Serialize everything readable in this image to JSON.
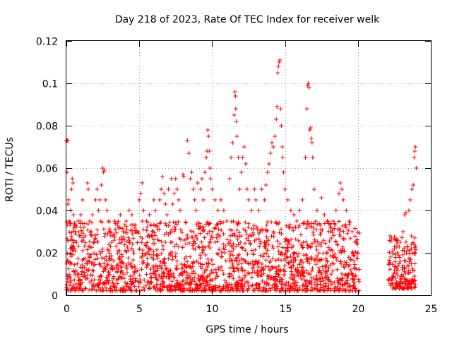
{
  "chart_data": {
    "type": "scatter",
    "title": "Day 218 of 2023, Rate Of TEC Index for receiver welk",
    "xlabel": "GPS time / hours",
    "ylabel": "ROTI / TECUs",
    "xlim": [
      0,
      25
    ],
    "ylim": [
      0,
      0.12
    ],
    "xticks": [
      0,
      5,
      10,
      15,
      20,
      25
    ],
    "yticks": [
      0,
      0.02,
      0.04,
      0.06,
      0.08,
      0.1,
      0.12
    ],
    "xtick_labels": [
      "0",
      "5",
      "10",
      "15",
      "20",
      "25"
    ],
    "ytick_labels": [
      "0",
      "0.02",
      "0.04",
      "0.06",
      "0.08",
      "0.1",
      "0.12"
    ],
    "grid": true,
    "marker": "plus",
    "color": "#ff0000",
    "series": [
      {
        "name": "",
        "points": [
          [
            0.0,
            0.073
          ],
          [
            0.05,
            0.073
          ],
          [
            0.1,
            0.073
          ],
          [
            0.05,
            0.058
          ],
          [
            0.1,
            0.043
          ],
          [
            0.15,
            0.045
          ],
          [
            0.2,
            0.035
          ],
          [
            0.25,
            0.033
          ],
          [
            0.3,
            0.04
          ],
          [
            0.4,
            0.055
          ],
          [
            0.45,
            0.053
          ],
          [
            0.35,
            0.05
          ],
          [
            0.5,
            0.038
          ],
          [
            0.55,
            0.034
          ],
          [
            0.6,
            0.03
          ],
          [
            0.7,
            0.025
          ],
          [
            0.8,
            0.035
          ],
          [
            0.9,
            0.028
          ],
          [
            1.0,
            0.038
          ],
          [
            1.1,
            0.045
          ],
          [
            1.2,
            0.032
          ],
          [
            1.3,
            0.028
          ],
          [
            1.5,
            0.05
          ],
          [
            1.45,
            0.053
          ],
          [
            1.6,
            0.035
          ],
          [
            1.7,
            0.03
          ],
          [
            1.8,
            0.038
          ],
          [
            1.9,
            0.025
          ],
          [
            2.0,
            0.045
          ],
          [
            2.1,
            0.05
          ],
          [
            2.2,
            0.04
          ],
          [
            2.3,
            0.045
          ],
          [
            2.4,
            0.052
          ],
          [
            2.5,
            0.06
          ],
          [
            2.55,
            0.058
          ],
          [
            2.6,
            0.059
          ],
          [
            2.7,
            0.045
          ],
          [
            2.8,
            0.04
          ],
          [
            2.9,
            0.035
          ],
          [
            3.0,
            0.03
          ],
          [
            3.1,
            0.025
          ],
          [
            3.2,
            0.028
          ],
          [
            3.3,
            0.035
          ],
          [
            3.5,
            0.033
          ],
          [
            3.7,
            0.038
          ],
          [
            3.9,
            0.03
          ],
          [
            4.1,
            0.035
          ],
          [
            4.3,
            0.04
          ],
          [
            4.5,
            0.038
          ],
          [
            4.7,
            0.033
          ],
          [
            4.9,
            0.03
          ],
          [
            5.0,
            0.045
          ],
          [
            5.1,
            0.048
          ],
          [
            5.2,
            0.053
          ],
          [
            5.3,
            0.04
          ],
          [
            5.5,
            0.035
          ],
          [
            5.7,
            0.038
          ],
          [
            5.9,
            0.03
          ],
          [
            6.0,
            0.045
          ],
          [
            6.1,
            0.04
          ],
          [
            6.2,
            0.033
          ],
          [
            6.4,
            0.045
          ],
          [
            6.5,
            0.05
          ],
          [
            6.6,
            0.056
          ],
          [
            6.7,
            0.048
          ],
          [
            6.8,
            0.043
          ],
          [
            6.9,
            0.038
          ],
          [
            7.0,
            0.05
          ],
          [
            7.2,
            0.055
          ],
          [
            7.3,
            0.043
          ],
          [
            7.4,
            0.048
          ],
          [
            7.5,
            0.055
          ],
          [
            7.6,
            0.05
          ],
          [
            7.7,
            0.045
          ],
          [
            7.8,
            0.04
          ],
          [
            8.0,
            0.057
          ],
          [
            8.05,
            0.056
          ],
          [
            8.3,
            0.073
          ],
          [
            8.4,
            0.067
          ],
          [
            8.5,
            0.055
          ],
          [
            8.6,
            0.058
          ],
          [
            8.7,
            0.05
          ],
          [
            8.8,
            0.045
          ],
          [
            8.9,
            0.04
          ],
          [
            9.0,
            0.053
          ],
          [
            9.2,
            0.05
          ],
          [
            9.3,
            0.055
          ],
          [
            9.4,
            0.045
          ],
          [
            9.5,
            0.058
          ],
          [
            9.6,
            0.065
          ],
          [
            9.65,
            0.068
          ],
          [
            9.7,
            0.078
          ],
          [
            9.75,
            0.075
          ],
          [
            9.8,
            0.068
          ],
          [
            9.85,
            0.06
          ],
          [
            9.9,
            0.055
          ],
          [
            10.0,
            0.05
          ],
          [
            10.2,
            0.045
          ],
          [
            10.4,
            0.04
          ],
          [
            10.6,
            0.045
          ],
          [
            10.8,
            0.04
          ],
          [
            11.0,
            0.035
          ],
          [
            11.2,
            0.055
          ],
          [
            11.3,
            0.065
          ],
          [
            11.4,
            0.072
          ],
          [
            11.5,
            0.085
          ],
          [
            11.55,
            0.096
          ],
          [
            11.6,
            0.094
          ],
          [
            11.62,
            0.088
          ],
          [
            11.65,
            0.082
          ],
          [
            11.7,
            0.075
          ],
          [
            11.8,
            0.065
          ],
          [
            11.9,
            0.05
          ],
          [
            12.0,
            0.058
          ],
          [
            12.1,
            0.065
          ],
          [
            12.2,
            0.07
          ],
          [
            12.3,
            0.062
          ],
          [
            12.4,
            0.05
          ],
          [
            12.5,
            0.045
          ],
          [
            12.7,
            0.04
          ],
          [
            12.9,
            0.05
          ],
          [
            13.0,
            0.045
          ],
          [
            13.2,
            0.04
          ],
          [
            13.4,
            0.05
          ],
          [
            13.6,
            0.045
          ],
          [
            13.7,
            0.052
          ],
          [
            13.8,
            0.058
          ],
          [
            13.9,
            0.062
          ],
          [
            14.0,
            0.067
          ],
          [
            14.1,
            0.072
          ],
          [
            14.2,
            0.07
          ],
          [
            14.3,
            0.075
          ],
          [
            14.4,
            0.083
          ],
          [
            14.45,
            0.089
          ],
          [
            14.5,
            0.105
          ],
          [
            14.55,
            0.108
          ],
          [
            14.6,
            0.11
          ],
          [
            14.65,
            0.111
          ],
          [
            14.7,
            0.088
          ],
          [
            14.75,
            0.08
          ],
          [
            14.8,
            0.07
          ],
          [
            14.85,
            0.065
          ],
          [
            14.9,
            0.058
          ],
          [
            15.0,
            0.05
          ],
          [
            15.2,
            0.045
          ],
          [
            15.4,
            0.04
          ],
          [
            15.6,
            0.038
          ],
          [
            15.8,
            0.035
          ],
          [
            16.0,
            0.04
          ],
          [
            16.2,
            0.045
          ],
          [
            16.4,
            0.065
          ],
          [
            16.5,
            0.088
          ],
          [
            16.55,
            0.099
          ],
          [
            16.6,
            0.1
          ],
          [
            16.65,
            0.098
          ],
          [
            16.7,
            0.078
          ],
          [
            16.75,
            0.079
          ],
          [
            16.8,
            0.074
          ],
          [
            16.85,
            0.072
          ],
          [
            16.9,
            0.065
          ],
          [
            17.0,
            0.05
          ],
          [
            17.2,
            0.04
          ],
          [
            17.5,
            0.046
          ],
          [
            17.7,
            0.038
          ],
          [
            17.9,
            0.035
          ],
          [
            18.1,
            0.03
          ],
          [
            18.3,
            0.035
          ],
          [
            18.5,
            0.04
          ],
          [
            18.7,
            0.048
          ],
          [
            18.8,
            0.053
          ],
          [
            18.9,
            0.05
          ],
          [
            19.0,
            0.045
          ],
          [
            19.2,
            0.04
          ],
          [
            19.4,
            0.035
          ],
          [
            19.6,
            0.03
          ],
          [
            19.8,
            0.025
          ],
          [
            20.0,
            0.02
          ],
          [
            22.2,
            0.028
          ],
          [
            22.3,
            0.027
          ],
          [
            22.5,
            0.022
          ],
          [
            22.7,
            0.02
          ],
          [
            22.9,
            0.025
          ],
          [
            23.1,
            0.03
          ],
          [
            23.2,
            0.038
          ],
          [
            23.3,
            0.039
          ],
          [
            23.5,
            0.04
          ],
          [
            23.6,
            0.045
          ],
          [
            23.7,
            0.05
          ],
          [
            23.8,
            0.052
          ],
          [
            23.85,
            0.065
          ],
          [
            23.9,
            0.068
          ],
          [
            23.95,
            0.07
          ],
          [
            24.0,
            0.06
          ]
        ]
      }
    ],
    "dense_band": {
      "segments": [
        {
          "x_start": 0.0,
          "x_end": 20.1,
          "y_min": 0.002,
          "y_max": 0.035
        },
        {
          "x_start": 22.1,
          "x_end": 24.0,
          "y_min": 0.003,
          "y_max": 0.028
        }
      ]
    }
  }
}
